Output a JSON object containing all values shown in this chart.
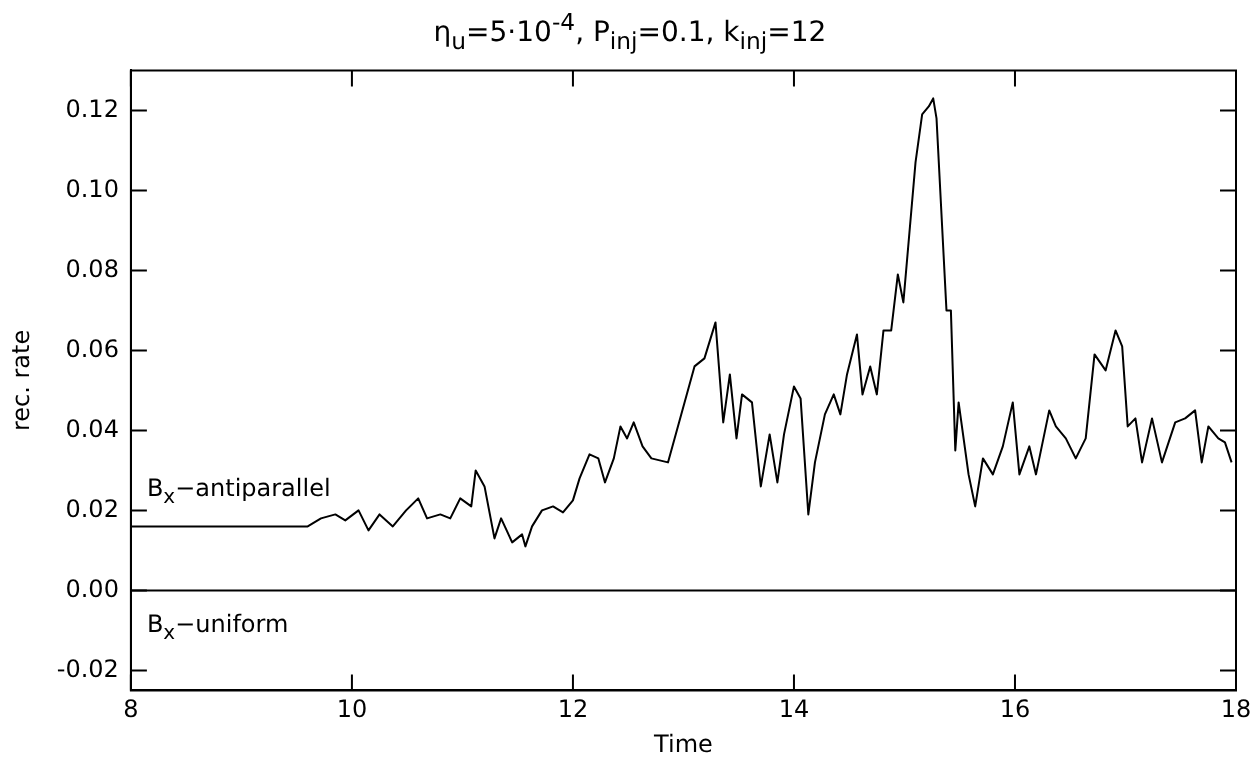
{
  "chart_data": {
    "type": "line",
    "title": "η$_{u}$=5·10$^{-4}$, P$_{inj}$=0.1, k$_{inj}$=12",
    "xlabel": "Time",
    "ylabel": "rec. rate",
    "xlim": [
      8,
      18
    ],
    "xticks": [
      8,
      10,
      12,
      14,
      16,
      18
    ],
    "ylim": [
      -0.025,
      0.13
    ],
    "yticks": [
      {
        "value": -0.02,
        "label": "-0.02"
      },
      {
        "value": 0,
        "label": "0.00"
      },
      {
        "value": 0.02,
        "label": "0.02"
      },
      {
        "value": 0.04,
        "label": "0.04"
      },
      {
        "value": 0.06,
        "label": "0.06"
      },
      {
        "value": 0.08,
        "label": "0.08"
      },
      {
        "value": 0.1,
        "label": "0.10"
      },
      {
        "value": 0.12,
        "label": "0.12"
      }
    ],
    "grid": false,
    "legend": "left",
    "marker": "none",
    "line_style": "solid",
    "series": [
      {
        "name": "B$_{x}$−antiparallel",
        "color": "#000000",
        "x": [
          8,
          9.48,
          9.6,
          9.72,
          9.85,
          9.94,
          10.06,
          10.15,
          10.25,
          10.37,
          10.49,
          10.6,
          10.68,
          10.8,
          10.89,
          10.98,
          11.08,
          11.12,
          11.2,
          11.29,
          11.35,
          11.45,
          11.54,
          11.57,
          11.63,
          11.72,
          11.82,
          11.91,
          12,
          12.06,
          12.15,
          12.23,
          12.29,
          12.37,
          12.43,
          12.49,
          12.55,
          12.63,
          12.71,
          12.86,
          12.98,
          13.1,
          13.19,
          13.29,
          13.36,
          13.42,
          13.48,
          13.53,
          13.62,
          13.7,
          13.78,
          13.85,
          13.91,
          14,
          14.06,
          14.13,
          14.19,
          14.28,
          14.36,
          14.42,
          14.48,
          14.57,
          14.62,
          14.69,
          14.75,
          14.81,
          14.88,
          14.94,
          14.99,
          15.1,
          15.16,
          15.22,
          15.26,
          15.29,
          15.38,
          15.42,
          15.46,
          15.49,
          15.58,
          15.64,
          15.71,
          15.8,
          15.89,
          15.98,
          16.04,
          16.13,
          16.19,
          16.31,
          16.37,
          16.46,
          16.55,
          16.64,
          16.72,
          16.82,
          16.91,
          16.97,
          17.02,
          17.09,
          17.15,
          17.24,
          17.33,
          17.45,
          17.54,
          17.63,
          17.69,
          17.75,
          17.84,
          17.9,
          17.96
        ],
        "values": [
          0.016,
          0.016,
          0.016,
          0.018,
          0.019,
          0.0175,
          0.02,
          0.015,
          0.019,
          0.016,
          0.02,
          0.023,
          0.018,
          0.019,
          0.018,
          0.023,
          0.021,
          0.03,
          0.026,
          0.013,
          0.018,
          0.012,
          0.014,
          0.011,
          0.016,
          0.02,
          0.021,
          0.0195,
          0.0225,
          0.028,
          0.034,
          0.033,
          0.027,
          0.033,
          0.041,
          0.038,
          0.042,
          0.036,
          0.033,
          0.032,
          0.044,
          0.056,
          0.058,
          0.067,
          0.042,
          0.054,
          0.038,
          0.049,
          0.047,
          0.026,
          0.039,
          0.027,
          0.039,
          0.051,
          0.048,
          0.019,
          0.032,
          0.044,
          0.049,
          0.044,
          0.054,
          0.064,
          0.049,
          0.056,
          0.049,
          0.065,
          0.065,
          0.079,
          0.072,
          0.107,
          0.119,
          0.121,
          0.123,
          0.118,
          0.07,
          0.07,
          0.035,
          0.047,
          0.029,
          0.021,
          0.033,
          0.029,
          0.036,
          0.047,
          0.029,
          0.036,
          0.029,
          0.045,
          0.041,
          0.038,
          0.033,
          0.038,
          0.059,
          0.055,
          0.065,
          0.061,
          0.041,
          0.043,
          0.032,
          0.043,
          0.032,
          0.042,
          0.043,
          0.045,
          0.032,
          0.041,
          0.038,
          0.037,
          0.032
        ]
      },
      {
        "name": "B$_{x}$−uniform",
        "color": "#000000",
        "x": [
          8,
          18
        ],
        "values": [
          0,
          0
        ]
      }
    ]
  }
}
